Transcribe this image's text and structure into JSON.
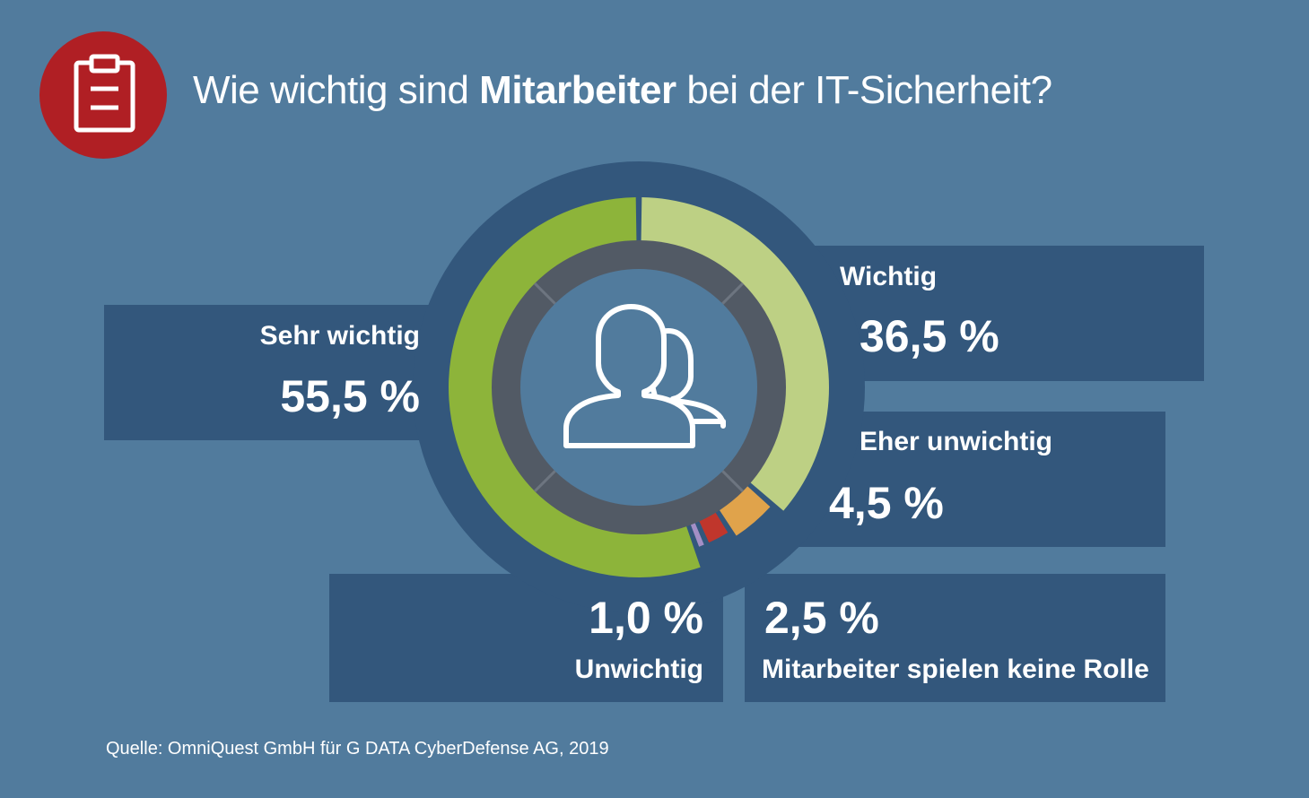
{
  "header": {
    "title_pre": "Wie wichtig sind ",
    "title_bold": "Mitarbeiter",
    "title_post": " bei der IT-Sicherheit?",
    "icon": "clipboard-icon"
  },
  "colors": {
    "background": "#517b9d",
    "box": "#33577c",
    "ring": "#33577c",
    "icon_bg": "#b01f24",
    "inner_ring": "#525a65"
  },
  "center_icon": "users-icon",
  "chart_data": {
    "type": "pie",
    "variant": "donut",
    "slices": [
      {
        "name": "Sehr wichtig",
        "value": 55.5,
        "label": "55,5 %",
        "color": "#8db43a"
      },
      {
        "name": "Wichtig",
        "value": 36.5,
        "label": "36,5 %",
        "color": "#bdd084"
      },
      {
        "name": "Eher unwichtig",
        "value": 4.5,
        "label": "4,5 %",
        "color": "#e0a34b"
      },
      {
        "name": "Mitarbeiter spielen keine Rolle",
        "value": 2.5,
        "label": "2,5 %",
        "color": "#c0362c"
      },
      {
        "name": "Unwichtig",
        "value": 1.0,
        "label": "1,0 %",
        "color": "#a48fc6"
      }
    ]
  },
  "source": "Quelle: OmniQuest GmbH für G DATA CyberDefense AG, 2019"
}
